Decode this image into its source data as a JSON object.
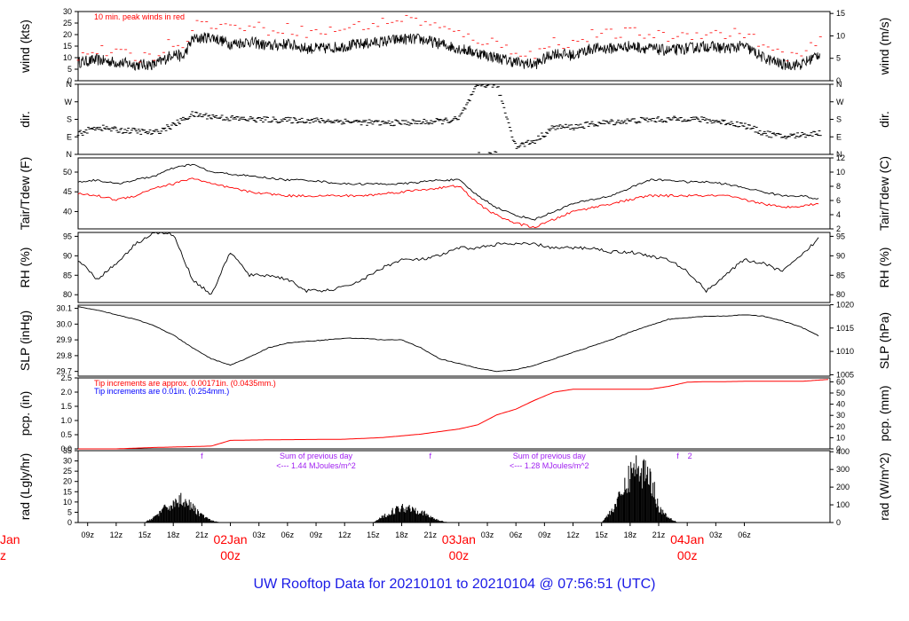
{
  "footer": "UW Rooftop Data for 20210101  to  20210104 @ 07:56:51  (UTC)",
  "colors": {
    "peak": "#ff0000",
    "tdew": "#ff0000",
    "pcp": "#ff0000",
    "pcp_note_blue": "#0000ff",
    "rad_note": "#a020f0",
    "day_label": "#ff0000",
    "footer": "#1a1ae6"
  },
  "chart_data": [
    {
      "type": "line",
      "name": "wind",
      "ylabel_left": "wind (kts)",
      "ylabel_right": "wind (m/s)",
      "ylim_left": [
        0,
        30
      ],
      "ylim_right": [
        0,
        15.43
      ],
      "yticks_left": [
        "0",
        "5",
        "10",
        "15",
        "20",
        "25",
        "30"
      ],
      "yticks_right": [
        "0",
        "5",
        "10",
        "15"
      ],
      "annotation": "10 min. peak winds in red",
      "x_hours": [
        0,
        2,
        4,
        6,
        8,
        9,
        10,
        11,
        12,
        14,
        16,
        18,
        20,
        22,
        24,
        26,
        28,
        30,
        32,
        34,
        36,
        38,
        40,
        42,
        44,
        46,
        48,
        50,
        52,
        54,
        56,
        58,
        60,
        62,
        64,
        66,
        68,
        70,
        72,
        74,
        76,
        78
      ],
      "wind": [
        8,
        9,
        8,
        7,
        7,
        9,
        12,
        10,
        18,
        19,
        16,
        17,
        15,
        16,
        14,
        14,
        15,
        16,
        17,
        18,
        18,
        16,
        14,
        12,
        10,
        8,
        7,
        12,
        11,
        14,
        14,
        15,
        14,
        13,
        14,
        15,
        14,
        15,
        10,
        7,
        7,
        12
      ],
      "peak": [
        10,
        12,
        11,
        9,
        10,
        13,
        16,
        14,
        23,
        24,
        22,
        23,
        21,
        22,
        20,
        20,
        22,
        23,
        24,
        26,
        25,
        22,
        19,
        17,
        15,
        12,
        10,
        16,
        15,
        19,
        19,
        20,
        19,
        18,
        19,
        20,
        19,
        20,
        14,
        10,
        10,
        16
      ]
    },
    {
      "type": "scatter",
      "name": "dir",
      "ylabel_left": "dir.",
      "ylabel_right": "dir.",
      "yticks": [
        "N",
        "E",
        "S",
        "W",
        "N"
      ],
      "x_hours": [
        0,
        2,
        4,
        6,
        8,
        10,
        12,
        14,
        16,
        18,
        20,
        22,
        24,
        26,
        28,
        30,
        32,
        34,
        36,
        38,
        40,
        42,
        44,
        46,
        48,
        50,
        52,
        54,
        56,
        58,
        60,
        62,
        64,
        66,
        68,
        70,
        72,
        74,
        76,
        78
      ],
      "deg": [
        105,
        140,
        125,
        120,
        110,
        150,
        205,
        195,
        185,
        180,
        178,
        175,
        175,
        172,
        170,
        165,
        160,
        163,
        165,
        170,
        180,
        355,
        360,
        40,
        70,
        140,
        140,
        155,
        165,
        172,
        178,
        178,
        185,
        175,
        165,
        150,
        110,
        90,
        100,
        110
      ]
    },
    {
      "type": "line",
      "name": "temp",
      "ylabel_left": "Tair/Tdew (F)",
      "ylabel_right": "Tair/Tdew (C)",
      "ylim_left": [
        35.6,
        53.6
      ],
      "ylim_right": [
        2,
        12
      ],
      "yticks_left": [
        "40",
        "45",
        "50"
      ],
      "yticks_right": [
        "2",
        "4",
        "6",
        "8",
        "10",
        "12"
      ],
      "x_hours": [
        0,
        2,
        4,
        6,
        8,
        10,
        12,
        14,
        16,
        18,
        20,
        22,
        24,
        26,
        28,
        30,
        32,
        34,
        36,
        38,
        40,
        42,
        44,
        46,
        48,
        50,
        52,
        54,
        56,
        58,
        60,
        62,
        64,
        66,
        68,
        70,
        72,
        74,
        76,
        78
      ],
      "tair": [
        47.5,
        48,
        47,
        48,
        49,
        51,
        52,
        50,
        49.5,
        49,
        48.5,
        48,
        48,
        47.5,
        47,
        47,
        47,
        47,
        47.5,
        48,
        48,
        44,
        41,
        39,
        38,
        40,
        42,
        43,
        44,
        46,
        48,
        48,
        47.5,
        47.5,
        47,
        46,
        45,
        44,
        44,
        43
      ],
      "tdew": [
        44.5,
        44,
        43,
        44,
        46,
        47,
        48.5,
        47,
        46,
        45,
        44.5,
        44,
        44,
        44,
        44,
        44,
        44.5,
        45,
        45.5,
        46,
        46.5,
        42,
        39,
        37,
        36,
        38,
        40,
        41,
        42,
        43,
        44,
        44,
        44,
        44,
        44,
        43,
        42,
        41,
        41.5,
        42
      ]
    },
    {
      "type": "line",
      "name": "rh",
      "ylabel_left": "RH (%)",
      "ylabel_right": "RH (%)",
      "ylim": [
        78,
        96
      ],
      "yticks": [
        "80",
        "85",
        "90",
        "95"
      ],
      "x_hours": [
        0,
        2,
        4,
        6,
        8,
        10,
        12,
        14,
        16,
        18,
        20,
        22,
        24,
        26,
        28,
        30,
        32,
        34,
        36,
        38,
        40,
        42,
        44,
        46,
        48,
        50,
        52,
        54,
        56,
        58,
        60,
        62,
        64,
        66,
        68,
        70,
        72,
        74,
        76,
        78
      ],
      "values": [
        89,
        84,
        88,
        93,
        96,
        95.5,
        84,
        80,
        91,
        85,
        85,
        84,
        81,
        81,
        82,
        84,
        87,
        89,
        89,
        90,
        92,
        92,
        93,
        93,
        93,
        92,
        92,
        92,
        91,
        91,
        90,
        89,
        86,
        81,
        85,
        89,
        88,
        86,
        90,
        95
      ]
    },
    {
      "type": "line",
      "name": "slp",
      "ylabel_left": "SLP (inHg)",
      "ylabel_right": "SLP (hPa)",
      "ylim_left": [
        29.67,
        30.12
      ],
      "ylim_right": [
        1004.7,
        1019.9
      ],
      "yticks_left": [
        "29.7",
        "29.8",
        "29.9",
        "30.0",
        "30.1"
      ],
      "yticks_right": [
        "1005",
        "1010",
        "1015",
        "1020"
      ],
      "x_hours": [
        0,
        2,
        4,
        6,
        8,
        10,
        12,
        14,
        16,
        18,
        20,
        22,
        24,
        26,
        28,
        30,
        32,
        34,
        36,
        38,
        40,
        42,
        44,
        46,
        48,
        50,
        52,
        54,
        56,
        58,
        60,
        62,
        64,
        66,
        68,
        70,
        72,
        74,
        76,
        78
      ],
      "values": [
        30.11,
        30.09,
        30.06,
        30.03,
        29.99,
        29.93,
        29.85,
        29.78,
        29.74,
        29.79,
        29.85,
        29.88,
        29.89,
        29.9,
        29.91,
        29.91,
        29.9,
        29.9,
        29.85,
        29.78,
        29.75,
        29.72,
        29.7,
        29.71,
        29.74,
        29.78,
        29.82,
        29.86,
        29.9,
        29.95,
        29.99,
        30.03,
        30.04,
        30.05,
        30.05,
        30.06,
        30.05,
        30.02,
        29.98,
        29.92
      ]
    },
    {
      "type": "area",
      "name": "pcp",
      "ylabel_left": "pcp. (in)",
      "ylabel_right": "pcp. (mm)",
      "ylim_left": [
        0,
        2.5
      ],
      "ylim_right": [
        0,
        63.5
      ],
      "yticks_left": [
        "0.0",
        "0.5",
        "1.0",
        "1.5",
        "2.0",
        "2.5"
      ],
      "yticks_right": [
        "0",
        "10",
        "20",
        "30",
        "40",
        "50",
        "60"
      ],
      "note_red": "Tip increments are approx. 0.00171in. (0.0435mm.)",
      "note_blue": "Tip increments are 0.01in. (0.254mm.)",
      "x_hours": [
        0,
        4,
        8,
        12,
        14,
        16,
        20,
        24,
        28,
        32,
        36,
        40,
        42,
        44,
        46,
        48,
        50,
        52,
        54,
        56,
        58,
        60,
        62,
        64,
        66,
        68,
        70,
        72,
        76,
        79
      ],
      "values": [
        0,
        0,
        0.05,
        0.08,
        0.1,
        0.3,
        0.32,
        0.33,
        0.34,
        0.4,
        0.52,
        0.7,
        0.85,
        1.2,
        1.4,
        1.72,
        2.0,
        2.1,
        2.1,
        2.1,
        2.1,
        2.1,
        2.2,
        2.35,
        2.37,
        2.37,
        2.38,
        2.38,
        2.38,
        2.45
      ]
    },
    {
      "type": "area",
      "name": "rad",
      "ylabel_left": "rad (Lgly/hr)",
      "ylabel_right": "rad (W/m^2)",
      "ylim_left": [
        0,
        35
      ],
      "ylim_right": [
        0,
        406
      ],
      "yticks_left": [
        "0",
        "5",
        "10",
        "15",
        "20",
        "25",
        "30",
        "35"
      ],
      "yticks_right": [
        "0",
        "100",
        "200",
        "300",
        "400"
      ],
      "sum_label": "Sum of previous day",
      "sum1": "<--- 1.44 MJoules/m^2",
      "sum2": "<--- 1.28 MJoules/m^2",
      "marks": [
        "f",
        "f",
        "f",
        "2"
      ],
      "x_hours": [
        7,
        8,
        9,
        10,
        11,
        12,
        13,
        14,
        15,
        31,
        32,
        33,
        34,
        35,
        36,
        37,
        38,
        39,
        55,
        56,
        57,
        58,
        58.5,
        59,
        59.5,
        60,
        60.5,
        61,
        62,
        63
      ],
      "values": [
        0,
        3,
        7,
        10,
        13,
        8,
        4,
        1,
        0,
        0,
        3,
        6,
        8,
        8,
        6,
        3,
        1,
        0,
        0,
        6,
        14,
        25,
        34,
        22,
        30,
        26,
        18,
        8,
        3,
        0
      ],
      "x_ticks": [
        "09z",
        "12z",
        "15z",
        "18z",
        "21z",
        "00z",
        "03z",
        "06z",
        "09z",
        "12z",
        "15z",
        "18z",
        "21z",
        "00z",
        "03z",
        "06z",
        "09z",
        "12z",
        "15z",
        "18z",
        "21z",
        "00z",
        "03z",
        "06z"
      ],
      "day_labels": [
        {
          "date": "02Jan",
          "hour": "00z"
        },
        {
          "date": "03Jan",
          "hour": "00z"
        },
        {
          "date": "04Jan",
          "hour": "00z"
        }
      ],
      "edge_labels": [
        "Jan",
        "z"
      ]
    }
  ]
}
